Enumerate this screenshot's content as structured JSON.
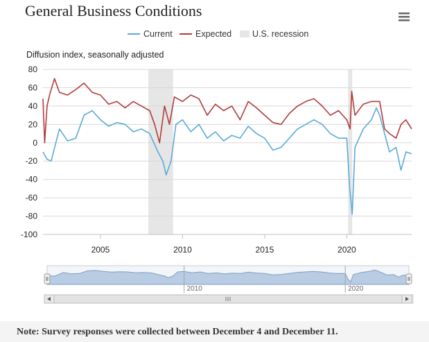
{
  "header": {
    "title": "General Business Conditions",
    "menu_icon": "hamburger-menu-icon"
  },
  "legend": {
    "current": "Current",
    "expected": "Expected",
    "recession": "U.S. recession"
  },
  "colors": {
    "current": "#5aa9d8",
    "expected": "#b23a3a",
    "recession": "#e6e6e6",
    "navigator_fill": "#b8cde3",
    "navigator_line": "#7f9cc0"
  },
  "navigator": {
    "labels": [
      "2010",
      "2020"
    ],
    "scrollbar_grip_icon": "grip-lines-icon",
    "left_arrow_icon": "arrow-left-icon",
    "right_arrow_icon": "arrow-right-icon"
  },
  "note": {
    "text": "Note: Survey responses were collected between December 4 and December 11."
  },
  "chart_data": {
    "type": "line",
    "title": "General Business Conditions",
    "ylabel": "Diffusion index, seasonally adjusted",
    "xlabel": "",
    "xlim": [
      2001.5,
      2023.95
    ],
    "ylim": [
      -100,
      80
    ],
    "yticks": [
      80,
      60,
      40,
      20,
      0,
      -20,
      -40,
      -60,
      -80,
      -100
    ],
    "xticks": [
      2005,
      2010,
      2015,
      2020
    ],
    "grid": true,
    "legend_position": "top",
    "recessions": [
      {
        "start": 2007.92,
        "end": 2009.42
      },
      {
        "start": 2020.08,
        "end": 2020.33
      }
    ],
    "series": [
      {
        "name": "Current",
        "x": [
          2001.5,
          2001.75,
          2002.0,
          2002.5,
          2003.0,
          2003.5,
          2004.0,
          2004.5,
          2005.0,
          2005.5,
          2006.0,
          2006.5,
          2007.0,
          2007.5,
          2008.0,
          2008.5,
          2008.8,
          2009.0,
          2009.3,
          2009.6,
          2010.0,
          2010.5,
          2011.0,
          2011.5,
          2012.0,
          2012.5,
          2013.0,
          2013.5,
          2014.0,
          2014.5,
          2015.0,
          2015.5,
          2016.0,
          2016.5,
          2017.0,
          2017.5,
          2018.0,
          2018.5,
          2019.0,
          2019.5,
          2020.0,
          2020.17,
          2020.33,
          2020.5,
          2020.75,
          2021.0,
          2021.5,
          2021.8,
          2022.0,
          2022.3,
          2022.6,
          2023.0,
          2023.3,
          2023.6,
          2023.95
        ],
        "values": [
          -10,
          -18,
          -20,
          15,
          2,
          5,
          30,
          35,
          25,
          18,
          22,
          20,
          12,
          15,
          10,
          -10,
          -20,
          -35,
          -20,
          20,
          25,
          12,
          20,
          5,
          12,
          2,
          8,
          5,
          18,
          10,
          5,
          -8,
          -5,
          5,
          15,
          20,
          25,
          20,
          10,
          5,
          5,
          -48,
          -78,
          -5,
          5,
          15,
          25,
          38,
          30,
          10,
          -10,
          -5,
          -30,
          -10,
          -12
        ]
      },
      {
        "name": "Expected",
        "x": [
          2001.5,
          2001.6,
          2001.75,
          2001.9,
          2002.2,
          2002.5,
          2003.0,
          2003.5,
          2004.0,
          2004.5,
          2005.0,
          2005.5,
          2006.0,
          2006.5,
          2007.0,
          2007.5,
          2008.0,
          2008.3,
          2008.6,
          2008.9,
          2009.2,
          2009.5,
          2010.0,
          2010.5,
          2011.0,
          2011.5,
          2012.0,
          2012.5,
          2013.0,
          2013.5,
          2014.0,
          2014.5,
          2015.0,
          2015.5,
          2016.0,
          2016.5,
          2017.0,
          2017.5,
          2018.0,
          2018.5,
          2019.0,
          2019.5,
          2020.0,
          2020.2,
          2020.3,
          2020.5,
          2021.0,
          2021.5,
          2022.0,
          2022.3,
          2022.6,
          2023.0,
          2023.3,
          2023.6,
          2023.95
        ],
        "values": [
          48,
          0,
          40,
          52,
          70,
          55,
          52,
          58,
          65,
          55,
          52,
          42,
          45,
          38,
          45,
          40,
          35,
          20,
          0,
          40,
          20,
          50,
          45,
          52,
          48,
          30,
          42,
          35,
          40,
          25,
          45,
          38,
          30,
          22,
          20,
          32,
          40,
          45,
          48,
          40,
          30,
          35,
          25,
          15,
          56,
          30,
          42,
          45,
          45,
          15,
          10,
          5,
          20,
          25,
          15
        ]
      }
    ]
  }
}
